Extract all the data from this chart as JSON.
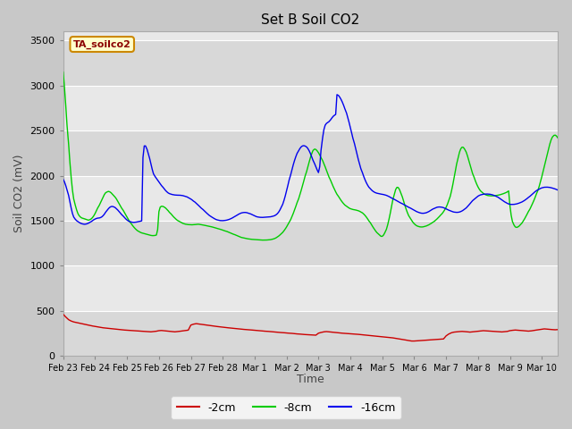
{
  "title": "Set B Soil CO2",
  "ylabel": "Soil CO2 (mV)",
  "xlabel": "Time",
  "sensor_label": "TA_soilco2",
  "legend": [
    "-2cm",
    "-8cm",
    "-16cm"
  ],
  "line_colors": [
    "#cc0000",
    "#00cc00",
    "#0000ee"
  ],
  "ylim": [
    0,
    3600
  ],
  "yticks": [
    0,
    500,
    1000,
    1500,
    2000,
    2500,
    3000,
    3500
  ],
  "x_tick_labels": [
    "Feb 23",
    "Feb 24",
    "Feb 25",
    "Feb 26",
    "Feb 27",
    "Feb 28",
    "Mar 1",
    "Mar 2",
    "Mar 3",
    "Mar 4",
    "Mar 5",
    "Mar 6",
    "Mar 7",
    "Mar 8",
    "Mar 9",
    "Mar 10"
  ],
  "band_dark": "#d8d8d8",
  "band_light": "#e8e8e8",
  "fig_bg": "#c8c8c8",
  "red_data": [
    0.0,
    460,
    0.08,
    430,
    0.17,
    400,
    0.25,
    385,
    0.33,
    375,
    0.42,
    368,
    0.5,
    362,
    0.58,
    355,
    0.67,
    348,
    0.75,
    342,
    0.83,
    336,
    0.92,
    330,
    1.0,
    325,
    1.08,
    320,
    1.17,
    315,
    1.25,
    310,
    1.33,
    307,
    1.42,
    304,
    1.5,
    300,
    1.58,
    297,
    1.67,
    294,
    1.75,
    291,
    1.83,
    288,
    1.92,
    285,
    2.0,
    283,
    2.08,
    281,
    2.17,
    279,
    2.25,
    277,
    2.33,
    275,
    2.42,
    273,
    2.5,
    271,
    2.58,
    269,
    2.67,
    267,
    2.75,
    265,
    2.83,
    268,
    2.92,
    272,
    3.0,
    278,
    3.08,
    280,
    3.17,
    277,
    3.25,
    274,
    3.33,
    271,
    3.42,
    268,
    3.5,
    265,
    3.58,
    268,
    3.67,
    272,
    3.75,
    276,
    3.83,
    280,
    3.92,
    284,
    4.0,
    340,
    4.08,
    350,
    4.17,
    356,
    4.25,
    352,
    4.33,
    348,
    4.42,
    344,
    4.5,
    340,
    4.58,
    336,
    4.67,
    332,
    4.75,
    328,
    4.83,
    324,
    4.92,
    320,
    5.0,
    316,
    5.08,
    313,
    5.17,
    310,
    5.25,
    307,
    5.33,
    304,
    5.42,
    301,
    5.5,
    298,
    5.58,
    295,
    5.67,
    292,
    5.75,
    290,
    5.83,
    287,
    5.92,
    285,
    6.0,
    282,
    6.08,
    280,
    6.17,
    277,
    6.25,
    275,
    6.33,
    272,
    6.42,
    270,
    6.5,
    267,
    6.58,
    265,
    6.67,
    262,
    6.75,
    260,
    6.83,
    257,
    6.92,
    255,
    7.0,
    252,
    7.08,
    250,
    7.17,
    248,
    7.25,
    245,
    7.33,
    242,
    7.42,
    240,
    7.5,
    237,
    7.58,
    235,
    7.67,
    233,
    7.75,
    231,
    7.83,
    229,
    7.92,
    228,
    8.0,
    250,
    8.08,
    258,
    8.17,
    265,
    8.25,
    268,
    8.33,
    265,
    8.42,
    262,
    8.5,
    259,
    8.58,
    256,
    8.67,
    253,
    8.75,
    250,
    8.83,
    248,
    8.92,
    246,
    9.0,
    244,
    9.08,
    242,
    9.17,
    240,
    9.25,
    237,
    9.33,
    234,
    9.42,
    231,
    9.5,
    228,
    9.58,
    225,
    9.67,
    222,
    9.75,
    219,
    9.83,
    216,
    9.92,
    213,
    10.0,
    210,
    10.08,
    207,
    10.17,
    204,
    10.25,
    201,
    10.33,
    198,
    10.42,
    193,
    10.5,
    188,
    10.58,
    183,
    10.67,
    178,
    10.75,
    173,
    10.83,
    168,
    10.92,
    163,
    11.0,
    163,
    11.08,
    165,
    11.17,
    167,
    11.25,
    169,
    11.33,
    171,
    11.42,
    173,
    11.5,
    175,
    11.58,
    177,
    11.67,
    179,
    11.75,
    181,
    11.83,
    183,
    11.92,
    186,
    12.0,
    220,
    12.08,
    240,
    12.17,
    255,
    12.25,
    262,
    12.33,
    265,
    12.42,
    268,
    12.5,
    270,
    12.58,
    268,
    12.67,
    265,
    12.75,
    262,
    12.83,
    265,
    12.92,
    268,
    13.0,
    272,
    13.08,
    275,
    13.17,
    278,
    13.25,
    276,
    13.33,
    274,
    13.42,
    272,
    13.5,
    270,
    13.58,
    268,
    13.67,
    266,
    13.75,
    264,
    13.83,
    267,
    13.92,
    270,
    14.0,
    278,
    14.08,
    282,
    14.17,
    285,
    14.25,
    283,
    14.33,
    280,
    14.42,
    278,
    14.5,
    275,
    14.58,
    273,
    14.67,
    276,
    14.75,
    280,
    14.83,
    285,
    14.92,
    290,
    15.0,
    295,
    15.08,
    298,
    15.17,
    295,
    15.25,
    292,
    15.33,
    290,
    15.42,
    288,
    15.5,
    290
  ],
  "green_data": [
    0.0,
    3150,
    0.04,
    2980,
    0.08,
    2780,
    0.12,
    2560,
    0.17,
    2350,
    0.21,
    2150,
    0.25,
    1980,
    0.29,
    1840,
    0.33,
    1740,
    0.38,
    1670,
    0.42,
    1620,
    0.46,
    1580,
    0.5,
    1555,
    0.54,
    1540,
    0.58,
    1530,
    0.63,
    1525,
    0.67,
    1520,
    0.71,
    1515,
    0.75,
    1510,
    0.79,
    1505,
    0.83,
    1510,
    0.88,
    1520,
    0.92,
    1535,
    0.96,
    1555,
    1.0,
    1580,
    1.04,
    1610,
    1.08,
    1640,
    1.13,
    1670,
    1.17,
    1700,
    1.21,
    1730,
    1.25,
    1760,
    1.29,
    1790,
    1.33,
    1810,
    1.38,
    1820,
    1.42,
    1825,
    1.46,
    1820,
    1.5,
    1810,
    1.54,
    1795,
    1.58,
    1780,
    1.63,
    1760,
    1.67,
    1740,
    1.71,
    1715,
    1.75,
    1690,
    1.79,
    1665,
    1.83,
    1640,
    1.88,
    1615,
    1.92,
    1590,
    1.96,
    1565,
    2.0,
    1540,
    2.04,
    1515,
    2.08,
    1490,
    2.13,
    1468,
    2.17,
    1448,
    2.21,
    1430,
    2.25,
    1414,
    2.29,
    1400,
    2.33,
    1388,
    2.38,
    1378,
    2.42,
    1370,
    2.46,
    1364,
    2.5,
    1360,
    2.54,
    1356,
    2.58,
    1352,
    2.63,
    1348,
    2.67,
    1344,
    2.71,
    1340,
    2.75,
    1336,
    2.79,
    1334,
    2.83,
    1334,
    2.88,
    1336,
    2.92,
    1340,
    2.96,
    1400,
    3.0,
    1600,
    3.04,
    1650,
    3.08,
    1660,
    3.13,
    1658,
    3.17,
    1650,
    3.21,
    1640,
    3.25,
    1625,
    3.29,
    1610,
    3.33,
    1592,
    3.38,
    1575,
    3.42,
    1558,
    3.46,
    1542,
    3.5,
    1528,
    3.54,
    1515,
    3.58,
    1503,
    3.63,
    1493,
    3.67,
    1484,
    3.71,
    1476,
    3.75,
    1470,
    3.79,
    1465,
    3.83,
    1461,
    3.88,
    1458,
    3.92,
    1456,
    3.96,
    1455,
    4.0,
    1454,
    4.04,
    1454,
    4.08,
    1455,
    4.13,
    1456,
    4.17,
    1458,
    4.21,
    1460,
    4.25,
    1460,
    4.29,
    1458,
    4.33,
    1455,
    4.38,
    1452,
    4.42,
    1449,
    4.46,
    1446,
    4.5,
    1443,
    4.54,
    1440,
    4.58,
    1437,
    4.63,
    1433,
    4.67,
    1430,
    4.71,
    1426,
    4.75,
    1422,
    4.79,
    1418,
    4.83,
    1414,
    4.88,
    1410,
    4.92,
    1405,
    4.96,
    1400,
    5.0,
    1395,
    5.04,
    1390,
    5.08,
    1385,
    5.13,
    1380,
    5.17,
    1374,
    5.21,
    1368,
    5.25,
    1362,
    5.29,
    1356,
    5.33,
    1350,
    5.38,
    1344,
    5.42,
    1338,
    5.46,
    1332,
    5.5,
    1326,
    5.54,
    1320,
    5.58,
    1314,
    5.63,
    1310,
    5.67,
    1306,
    5.71,
    1303,
    5.75,
    1300,
    5.79,
    1298,
    5.83,
    1296,
    5.88,
    1294,
    5.92,
    1292,
    5.96,
    1291,
    6.0,
    1290,
    6.04,
    1289,
    6.08,
    1288,
    6.13,
    1287,
    6.17,
    1286,
    6.21,
    1285,
    6.25,
    1284,
    6.29,
    1284,
    6.33,
    1284,
    6.38,
    1285,
    6.42,
    1286,
    6.46,
    1287,
    6.5,
    1289,
    6.54,
    1292,
    6.58,
    1296,
    6.63,
    1302,
    6.67,
    1309,
    6.71,
    1318,
    6.75,
    1328,
    6.79,
    1340,
    6.83,
    1354,
    6.88,
    1370,
    6.92,
    1388,
    6.96,
    1408,
    7.0,
    1430,
    7.04,
    1455,
    7.08,
    1482,
    7.13,
    1512,
    7.17,
    1545,
    7.21,
    1580,
    7.25,
    1618,
    7.29,
    1658,
    7.33,
    1700,
    7.38,
    1744,
    7.42,
    1790,
    7.46,
    1838,
    7.5,
    1888,
    7.54,
    1940,
    7.58,
    1993,
    7.63,
    2047,
    7.67,
    2101,
    7.71,
    2153,
    7.75,
    2202,
    7.79,
    2245,
    7.83,
    2280,
    7.88,
    2295,
    7.92,
    2290,
    7.96,
    2275,
    8.0,
    2255,
    8.04,
    2230,
    8.08,
    2200,
    8.13,
    2168,
    8.17,
    2134,
    8.21,
    2098,
    8.25,
    2061,
    8.29,
    2023,
    8.33,
    1985,
    8.38,
    1948,
    8.42,
    1913,
    8.46,
    1880,
    8.5,
    1849,
    8.54,
    1820,
    8.58,
    1793,
    8.63,
    1768,
    8.67,
    1745,
    8.71,
    1724,
    8.75,
    1705,
    8.79,
    1688,
    8.83,
    1673,
    8.88,
    1660,
    8.92,
    1649,
    8.96,
    1640,
    9.0,
    1633,
    9.04,
    1628,
    9.08,
    1624,
    9.13,
    1621,
    9.17,
    1618,
    9.21,
    1614,
    9.25,
    1610,
    9.29,
    1604,
    9.33,
    1596,
    9.38,
    1586,
    9.42,
    1573,
    9.46,
    1558,
    9.5,
    1540,
    9.54,
    1520,
    9.58,
    1498,
    9.63,
    1475,
    9.67,
    1451,
    9.71,
    1428,
    9.75,
    1406,
    9.79,
    1386,
    9.83,
    1368,
    9.88,
    1352,
    9.92,
    1338,
    9.96,
    1326,
    10.0,
    1326,
    10.04,
    1340,
    10.08,
    1366,
    10.13,
    1404,
    10.17,
    1454,
    10.21,
    1514,
    10.25,
    1582,
    10.29,
    1656,
    10.33,
    1730,
    10.38,
    1796,
    10.42,
    1846,
    10.46,
    1870,
    10.5,
    1868,
    10.54,
    1845,
    10.58,
    1808,
    10.63,
    1763,
    10.67,
    1715,
    10.71,
    1668,
    10.75,
    1625,
    10.79,
    1587,
    10.83,
    1554,
    10.88,
    1526,
    10.92,
    1502,
    10.96,
    1482,
    11.0,
    1466,
    11.04,
    1453,
    11.08,
    1443,
    11.13,
    1436,
    11.17,
    1432,
    11.21,
    1430,
    11.25,
    1430,
    11.29,
    1432,
    11.33,
    1436,
    11.38,
    1441,
    11.42,
    1447,
    11.46,
    1454,
    11.5,
    1462,
    11.54,
    1471,
    11.58,
    1481,
    11.63,
    1492,
    11.67,
    1504,
    11.71,
    1517,
    11.75,
    1531,
    11.79,
    1546,
    11.83,
    1562,
    11.88,
    1580,
    11.92,
    1600,
    11.96,
    1622,
    12.0,
    1648,
    12.04,
    1680,
    12.08,
    1720,
    12.13,
    1770,
    12.17,
    1830,
    12.21,
    1898,
    12.25,
    1972,
    12.29,
    2050,
    12.33,
    2128,
    12.38,
    2200,
    12.42,
    2260,
    12.46,
    2298,
    12.5,
    2316,
    12.54,
    2314,
    12.58,
    2295,
    12.63,
    2262,
    12.67,
    2220,
    12.71,
    2172,
    12.75,
    2122,
    12.79,
    2072,
    12.83,
    2024,
    12.88,
    1980,
    12.92,
    1940,
    12.96,
    1905,
    13.0,
    1875,
    13.04,
    1850,
    13.08,
    1830,
    13.13,
    1814,
    13.17,
    1802,
    13.21,
    1793,
    13.25,
    1786,
    13.29,
    1781,
    13.33,
    1778,
    13.38,
    1776,
    13.42,
    1775,
    13.46,
    1775,
    13.5,
    1776,
    13.54,
    1778,
    13.58,
    1780,
    13.63,
    1783,
    13.67,
    1786,
    13.71,
    1790,
    13.75,
    1794,
    13.79,
    1799,
    13.83,
    1805,
    13.88,
    1812,
    13.92,
    1820,
    13.96,
    1830,
    14.0,
    1670,
    14.04,
    1560,
    14.08,
    1490,
    14.13,
    1450,
    14.17,
    1430,
    14.21,
    1425,
    14.25,
    1430,
    14.29,
    1440,
    14.33,
    1455,
    14.38,
    1474,
    14.42,
    1496,
    14.46,
    1520,
    14.5,
    1546,
    14.54,
    1573,
    14.58,
    1601,
    14.63,
    1630,
    14.67,
    1660,
    14.71,
    1691,
    14.75,
    1723,
    14.79,
    1758,
    14.83,
    1796,
    14.88,
    1838,
    14.92,
    1884,
    14.96,
    1934,
    15.0,
    1988,
    15.04,
    2046,
    15.08,
    2108,
    15.13,
    2172,
    15.17,
    2236,
    15.21,
    2296,
    15.25,
    2350,
    15.29,
    2395,
    15.33,
    2428,
    15.38,
    2447,
    15.42,
    2450,
    15.46,
    2440,
    15.5,
    2420
  ],
  "blue_data": [
    0.0,
    1960,
    0.04,
    1930,
    0.08,
    1890,
    0.12,
    1840,
    0.17,
    1780,
    0.21,
    1710,
    0.25,
    1640,
    0.29,
    1580,
    0.33,
    1540,
    0.38,
    1515,
    0.42,
    1500,
    0.46,
    1490,
    0.5,
    1480,
    0.54,
    1472,
    0.58,
    1466,
    0.63,
    1462,
    0.67,
    1460,
    0.71,
    1462,
    0.75,
    1466,
    0.79,
    1472,
    0.83,
    1480,
    0.88,
    1490,
    0.92,
    1500,
    0.96,
    1510,
    1.0,
    1518,
    1.04,
    1524,
    1.08,
    1528,
    1.13,
    1530,
    1.17,
    1534,
    1.21,
    1542,
    1.25,
    1555,
    1.29,
    1572,
    1.33,
    1594,
    1.38,
    1616,
    1.42,
    1634,
    1.46,
    1648,
    1.5,
    1656,
    1.54,
    1658,
    1.58,
    1654,
    1.63,
    1645,
    1.67,
    1632,
    1.71,
    1618,
    1.75,
    1602,
    1.79,
    1585,
    1.83,
    1568,
    1.88,
    1551,
    1.92,
    1535,
    1.96,
    1520,
    2.0,
    1507,
    2.04,
    1497,
    2.08,
    1490,
    2.13,
    1485,
    2.17,
    1482,
    2.21,
    1481,
    2.25,
    1482,
    2.29,
    1484,
    2.33,
    1487,
    2.38,
    1490,
    2.42,
    1494,
    2.46,
    1498,
    2.5,
    2200,
    2.54,
    2330,
    2.58,
    2330,
    2.63,
    2290,
    2.67,
    2240,
    2.71,
    2190,
    2.75,
    2130,
    2.79,
    2070,
    2.83,
    2020,
    2.88,
    1990,
    2.92,
    1970,
    2.96,
    1950,
    3.0,
    1930,
    3.04,
    1910,
    3.08,
    1890,
    3.13,
    1870,
    3.17,
    1852,
    3.21,
    1834,
    3.25,
    1820,
    3.29,
    1808,
    3.33,
    1800,
    3.38,
    1794,
    3.42,
    1790,
    3.46,
    1787,
    3.5,
    1785,
    3.54,
    1784,
    3.58,
    1783,
    3.63,
    1783,
    3.67,
    1782,
    3.71,
    1780,
    3.75,
    1778,
    3.79,
    1774,
    3.83,
    1770,
    3.88,
    1764,
    3.92,
    1756,
    3.96,
    1748,
    4.0,
    1740,
    4.04,
    1730,
    4.08,
    1718,
    4.13,
    1706,
    4.17,
    1693,
    4.21,
    1680,
    4.25,
    1666,
    4.29,
    1652,
    4.33,
    1638,
    4.38,
    1624,
    4.42,
    1610,
    4.46,
    1596,
    4.5,
    1583,
    4.54,
    1570,
    4.58,
    1558,
    4.63,
    1547,
    4.67,
    1537,
    4.71,
    1528,
    4.75,
    1520,
    4.79,
    1513,
    4.83,
    1508,
    4.88,
    1504,
    4.92,
    1501,
    4.96,
    1500,
    5.0,
    1500,
    5.04,
    1501,
    5.08,
    1503,
    5.13,
    1506,
    5.17,
    1510,
    5.21,
    1515,
    5.25,
    1521,
    5.29,
    1528,
    5.33,
    1536,
    5.38,
    1545,
    5.42,
    1554,
    5.46,
    1563,
    5.5,
    1572,
    5.54,
    1579,
    5.58,
    1585,
    5.63,
    1589,
    5.67,
    1591,
    5.71,
    1591,
    5.75,
    1589,
    5.79,
    1585,
    5.83,
    1580,
    5.88,
    1574,
    5.92,
    1567,
    5.96,
    1560,
    6.0,
    1553,
    6.04,
    1547,
    6.08,
    1542,
    6.13,
    1539,
    6.17,
    1537,
    6.21,
    1536,
    6.25,
    1536,
    6.29,
    1537,
    6.33,
    1538,
    6.38,
    1539,
    6.42,
    1540,
    6.46,
    1541,
    6.5,
    1543,
    6.54,
    1546,
    6.58,
    1550,
    6.63,
    1556,
    6.67,
    1565,
    6.71,
    1577,
    6.75,
    1594,
    6.79,
    1617,
    6.83,
    1646,
    6.88,
    1682,
    6.92,
    1725,
    6.96,
    1775,
    7.0,
    1830,
    7.04,
    1889,
    7.08,
    1950,
    7.13,
    2010,
    7.17,
    2067,
    7.21,
    2120,
    7.25,
    2168,
    7.29,
    2210,
    7.33,
    2247,
    7.38,
    2278,
    7.42,
    2302,
    7.46,
    2320,
    7.5,
    2330,
    7.54,
    2333,
    7.58,
    2329,
    7.63,
    2318,
    7.67,
    2300,
    7.71,
    2275,
    7.75,
    2244,
    7.79,
    2208,
    7.83,
    2170,
    7.88,
    2132,
    7.92,
    2096,
    7.96,
    2063,
    8.0,
    2034,
    8.04,
    2100,
    8.08,
    2280,
    8.13,
    2420,
    8.17,
    2510,
    8.21,
    2560,
    8.25,
    2580,
    8.29,
    2590,
    8.33,
    2600,
    8.38,
    2620,
    8.42,
    2640,
    8.46,
    2658,
    8.5,
    2670,
    8.54,
    2680,
    8.58,
    2900,
    8.63,
    2890,
    8.67,
    2870,
    8.71,
    2845,
    8.75,
    2815,
    8.79,
    2780,
    8.83,
    2740,
    8.88,
    2695,
    8.92,
    2645,
    8.96,
    2591,
    9.0,
    2534,
    9.04,
    2475,
    9.08,
    2415,
    9.13,
    2354,
    9.17,
    2294,
    9.21,
    2235,
    9.25,
    2178,
    9.29,
    2125,
    9.33,
    2076,
    9.38,
    2031,
    9.42,
    1990,
    9.46,
    1954,
    9.5,
    1922,
    9.54,
    1895,
    9.58,
    1872,
    9.63,
    1853,
    9.67,
    1838,
    9.71,
    1826,
    9.75,
    1817,
    9.79,
    1810,
    9.83,
    1805,
    9.88,
    1801,
    9.92,
    1798,
    9.96,
    1795,
    10.0,
    1793,
    10.04,
    1790,
    10.08,
    1786,
    10.13,
    1781,
    10.17,
    1775,
    10.21,
    1768,
    10.25,
    1760,
    10.29,
    1752,
    10.33,
    1744,
    10.38,
    1736,
    10.42,
    1728,
    10.46,
    1720,
    10.5,
    1712,
    10.54,
    1704,
    10.58,
    1696,
    10.63,
    1688,
    10.67,
    1680,
    10.71,
    1672,
    10.75,
    1664,
    10.79,
    1656,
    10.83,
    1648,
    10.88,
    1640,
    10.92,
    1632,
    10.96,
    1624,
    11.0,
    1616,
    11.04,
    1608,
    11.08,
    1600,
    11.13,
    1593,
    11.17,
    1588,
    11.21,
    1584,
    11.25,
    1582,
    11.29,
    1582,
    11.33,
    1584,
    11.38,
    1588,
    11.42,
    1594,
    11.46,
    1601,
    11.5,
    1610,
    11.54,
    1619,
    11.58,
    1628,
    11.63,
    1636,
    11.67,
    1643,
    11.71,
    1648,
    11.75,
    1651,
    11.79,
    1652,
    11.83,
    1651,
    11.88,
    1648,
    11.92,
    1644,
    11.96,
    1638,
    12.0,
    1631,
    12.04,
    1624,
    12.08,
    1617,
    12.13,
    1610,
    12.17,
    1604,
    12.21,
    1599,
    12.25,
    1595,
    12.29,
    1593,
    12.33,
    1592,
    12.38,
    1593,
    12.42,
    1596,
    12.46,
    1601,
    12.5,
    1608,
    12.54,
    1617,
    12.58,
    1628,
    12.63,
    1641,
    12.67,
    1656,
    12.71,
    1672,
    12.75,
    1689,
    12.79,
    1706,
    12.83,
    1722,
    12.88,
    1737,
    12.92,
    1750,
    12.96,
    1762,
    13.0,
    1772,
    13.04,
    1780,
    13.08,
    1786,
    13.13,
    1791,
    13.17,
    1794,
    13.21,
    1795,
    13.25,
    1796,
    13.29,
    1796,
    13.33,
    1795,
    13.38,
    1793,
    13.42,
    1790,
    13.46,
    1786,
    13.5,
    1781,
    13.54,
    1775,
    13.58,
    1768,
    13.63,
    1760,
    13.67,
    1750,
    13.71,
    1740,
    13.75,
    1730,
    13.79,
    1720,
    13.83,
    1710,
    13.88,
    1700,
    13.92,
    1692,
    13.96,
    1686,
    14.0,
    1682,
    14.04,
    1680,
    14.08,
    1680,
    14.13,
    1681,
    14.17,
    1683,
    14.21,
    1686,
    14.25,
    1690,
    14.29,
    1695,
    14.33,
    1701,
    14.38,
    1708,
    14.42,
    1716,
    14.46,
    1725,
    14.5,
    1735,
    14.54,
    1746,
    14.58,
    1758,
    14.63,
    1771,
    14.67,
    1784,
    14.71,
    1797,
    14.75,
    1810,
    14.79,
    1822,
    14.83,
    1833,
    14.88,
    1843,
    14.92,
    1851,
    14.96,
    1858,
    15.0,
    1864,
    15.04,
    1868,
    15.08,
    1871,
    15.13,
    1872,
    15.17,
    1872,
    15.21,
    1871,
    15.25,
    1869,
    15.29,
    1866,
    15.33,
    1862,
    15.38,
    1857,
    15.42,
    1852,
    15.46,
    1846,
    15.5,
    1840
  ]
}
